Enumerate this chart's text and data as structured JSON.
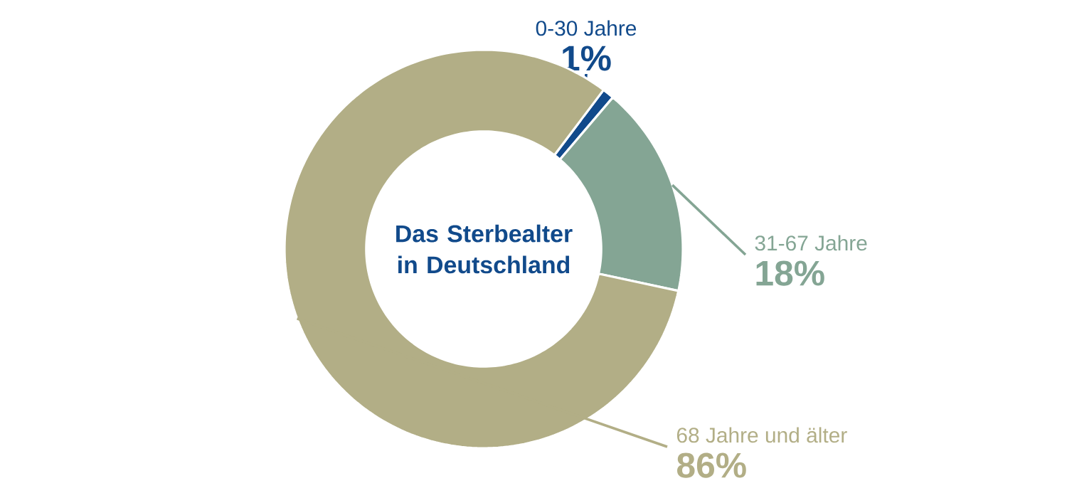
{
  "chart_data": {
    "type": "donut",
    "title": "Das Sterbealter in Deutschland",
    "categories": [
      "0-30 Jahre",
      "31-67 Jahre",
      "68 Jahre und älter"
    ],
    "values": [
      1,
      18,
      86
    ],
    "colors": [
      "#114a8b",
      "#84a594",
      "#b2ae86"
    ],
    "value_labels": [
      "1%",
      "18%",
      "86%"
    ]
  }
}
